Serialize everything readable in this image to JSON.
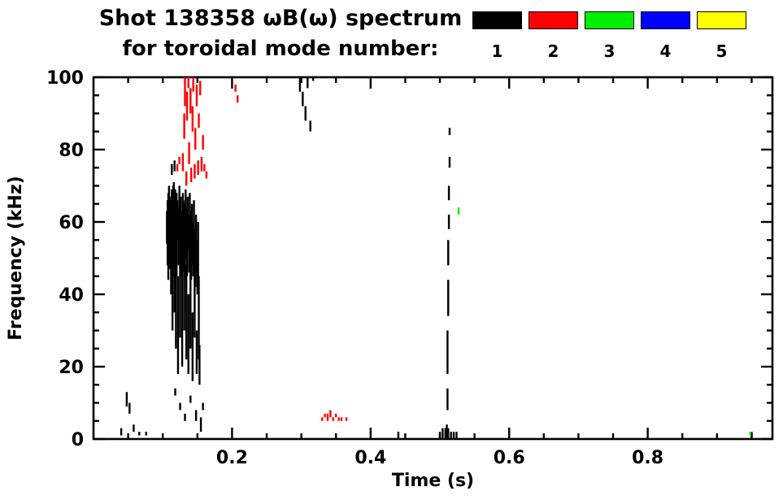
{
  "title": {
    "line1": "Shot 138358 ωB(ω) spectrum",
    "line2": "for toroidal mode number:"
  },
  "legend": {
    "entries": [
      {
        "label": "1",
        "color": "#000000"
      },
      {
        "label": "2",
        "color": "#ff0000"
      },
      {
        "label": "3",
        "color": "#00ee00"
      },
      {
        "label": "4",
        "color": "#0000ff"
      },
      {
        "label": "5",
        "color": "#ffff00"
      }
    ]
  },
  "chart_data": {
    "type": "scatter",
    "title": "Shot 138358 ωB(ω) spectrum for toroidal mode number: 1 2 3 4 5",
    "xlabel": "Time (s)",
    "ylabel": "Frequency (kHz)",
    "xlim": [
      0,
      0.98
    ],
    "ylim": [
      0,
      100
    ],
    "x_ticks": {
      "values": [
        0.2,
        0.4,
        0.6,
        0.8
      ],
      "labels": [
        "0.2",
        "0.4",
        "0.6",
        "0.8"
      ],
      "minor_step": 0.05
    },
    "y_ticks": {
      "values": [
        0,
        20,
        40,
        60,
        80,
        100
      ],
      "labels": [
        "0",
        "20",
        "40",
        "60",
        "80",
        "100"
      ],
      "minor_step": 5
    },
    "grid": false,
    "legend_position": "top-right",
    "series": [
      {
        "name": "mode 1",
        "legend_label": "1",
        "color": "#000000",
        "segments": [
          [
            0.04,
            1,
            3
          ],
          [
            0.048,
            9,
            13
          ],
          [
            0.052,
            7,
            10
          ],
          [
            0.058,
            2,
            4
          ],
          [
            0.066,
            1,
            2
          ],
          [
            0.076,
            1,
            2
          ],
          [
            0.106,
            54,
            63
          ],
          [
            0.107,
            48,
            66
          ],
          [
            0.108,
            44,
            68
          ],
          [
            0.109,
            55,
            70
          ],
          [
            0.11,
            47,
            66
          ],
          [
            0.111,
            52,
            64
          ],
          [
            0.112,
            40,
            67
          ],
          [
            0.113,
            55,
            69
          ],
          [
            0.114,
            30,
            60
          ],
          [
            0.115,
            45,
            70
          ],
          [
            0.116,
            57,
            71
          ],
          [
            0.117,
            35,
            65
          ],
          [
            0.118,
            50,
            69
          ],
          [
            0.119,
            25,
            55
          ],
          [
            0.12,
            45,
            68
          ],
          [
            0.121,
            55,
            66
          ],
          [
            0.122,
            18,
            45
          ],
          [
            0.123,
            48,
            64
          ],
          [
            0.124,
            52,
            70
          ],
          [
            0.125,
            28,
            60
          ],
          [
            0.126,
            45,
            67
          ],
          [
            0.127,
            50,
            63
          ],
          [
            0.128,
            20,
            52
          ],
          [
            0.129,
            46,
            68
          ],
          [
            0.13,
            55,
            65
          ],
          [
            0.131,
            30,
            58
          ],
          [
            0.132,
            44,
            66
          ],
          [
            0.133,
            50,
            69
          ],
          [
            0.134,
            22,
            48
          ],
          [
            0.135,
            45,
            64
          ],
          [
            0.136,
            52,
            67
          ],
          [
            0.137,
            18,
            40
          ],
          [
            0.138,
            46,
            62
          ],
          [
            0.139,
            50,
            68
          ],
          [
            0.14,
            25,
            55
          ],
          [
            0.141,
            44,
            63
          ],
          [
            0.142,
            48,
            65
          ],
          [
            0.143,
            16,
            35
          ],
          [
            0.144,
            45,
            60
          ],
          [
            0.145,
            50,
            66
          ],
          [
            0.146,
            28,
            52
          ],
          [
            0.147,
            42,
            58
          ],
          [
            0.148,
            46,
            62
          ],
          [
            0.149,
            18,
            30
          ],
          [
            0.15,
            40,
            55
          ],
          [
            0.151,
            44,
            60
          ],
          [
            0.152,
            22,
            45
          ],
          [
            0.153,
            15,
            26
          ],
          [
            0.113,
            73,
            76
          ],
          [
            0.117,
            74,
            77
          ],
          [
            0.118,
            12,
            14
          ],
          [
            0.125,
            8,
            10
          ],
          [
            0.132,
            5,
            7
          ],
          [
            0.14,
            10,
            12
          ],
          [
            0.148,
            5,
            8
          ],
          [
            0.155,
            2,
            6
          ],
          [
            0.158,
            8,
            10
          ],
          [
            0.298,
            96,
            100
          ],
          [
            0.302,
            92,
            96
          ],
          [
            0.306,
            88,
            92
          ],
          [
            0.309,
            97,
            100
          ],
          [
            0.313,
            85,
            88
          ],
          [
            0.317,
            99,
            100
          ],
          [
            0.51,
            0,
            4
          ],
          [
            0.511,
            8,
            14
          ],
          [
            0.511,
            18,
            30
          ],
          [
            0.512,
            34,
            44
          ],
          [
            0.512,
            48,
            55
          ],
          [
            0.513,
            58,
            62
          ],
          [
            0.513,
            66,
            70
          ],
          [
            0.514,
            75,
            78
          ],
          [
            0.514,
            84,
            86
          ],
          [
            0.5,
            0,
            2
          ],
          [
            0.504,
            0,
            3
          ],
          [
            0.508,
            0,
            3
          ],
          [
            0.512,
            0,
            3
          ],
          [
            0.516,
            0,
            2
          ],
          [
            0.52,
            0,
            2
          ],
          [
            0.524,
            0,
            2
          ],
          [
            0.44,
            0,
            2
          ],
          [
            0.95,
            0,
            2
          ]
        ]
      },
      {
        "name": "mode 2",
        "legend_label": "2",
        "color": "#ff0000",
        "segments": [
          [
            0.121,
            74,
            76
          ],
          [
            0.124,
            76,
            78
          ],
          [
            0.129,
            74,
            79
          ],
          [
            0.131,
            83,
            90
          ],
          [
            0.132,
            92,
            100
          ],
          [
            0.134,
            70,
            74
          ],
          [
            0.135,
            88,
            96
          ],
          [
            0.137,
            97,
            100
          ],
          [
            0.138,
            76,
            82
          ],
          [
            0.14,
            90,
            97
          ],
          [
            0.141,
            71,
            75
          ],
          [
            0.143,
            85,
            92
          ],
          [
            0.144,
            96,
            100
          ],
          [
            0.146,
            72,
            76
          ],
          [
            0.147,
            80,
            86
          ],
          [
            0.149,
            92,
            98
          ],
          [
            0.151,
            73,
            77
          ],
          [
            0.152,
            86,
            90
          ],
          [
            0.154,
            95,
            99
          ],
          [
            0.156,
            74,
            78
          ],
          [
            0.158,
            80,
            84
          ],
          [
            0.16,
            74,
            76
          ],
          [
            0.163,
            72,
            74
          ],
          [
            0.205,
            96,
            98
          ],
          [
            0.208,
            93,
            95
          ],
          [
            0.33,
            5,
            6
          ],
          [
            0.334,
            6,
            7
          ],
          [
            0.338,
            5,
            7
          ],
          [
            0.342,
            6,
            8
          ],
          [
            0.346,
            5,
            6
          ],
          [
            0.35,
            6,
            7
          ],
          [
            0.354,
            5,
            6
          ],
          [
            0.358,
            5,
            6
          ],
          [
            0.365,
            5,
            6
          ]
        ]
      },
      {
        "name": "mode 3",
        "legend_label": "3",
        "color": "#00ee00",
        "segments": [
          [
            0.527,
            62,
            64
          ],
          [
            0.948,
            1,
            2
          ]
        ]
      },
      {
        "name": "mode 4",
        "legend_label": "4",
        "color": "#0000ff",
        "segments": []
      },
      {
        "name": "mode 5",
        "legend_label": "5",
        "color": "#ffff00",
        "segments": []
      }
    ]
  }
}
